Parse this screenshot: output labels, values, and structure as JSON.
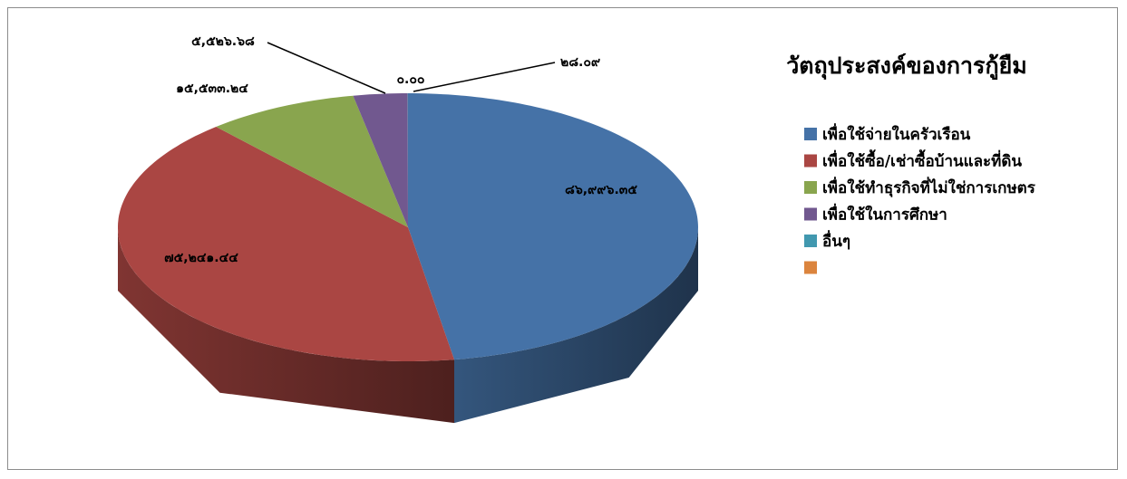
{
  "chart_data": {
    "type": "pie",
    "title": "วัตถุประสงค์ของการกู้ยืม",
    "categories": [
      "เพื่อใช้จ่ายในครัวเรือน",
      "เพื่อใช้ซื้อ/เช่าซื้อบ้านและที่ดิน",
      "เพื่อใช้ทำธุรกิจที่ไม่ใช่การเกษตร",
      "เพื่อใช้ในการศึกษา",
      "อื่นๆ",
      null
    ],
    "values": [
      86996.35,
      75241.44,
      15533.24,
      5526.68,
      28.09,
      0.0
    ],
    "value_labels": [
      "๘๖,๙๙๖.๓๕",
      "๗๕,๒๔๑.๔๔",
      "๑๕,๕๓๓.๒๔",
      "๕,๕๒๖.๖๘",
      "๒๘.๐๙",
      "๐.๐๐"
    ],
    "colors": [
      "#4572a7",
      "#aa4643",
      "#89a54e",
      "#71588f",
      "#4198af",
      "#db843d"
    ],
    "legend": "right"
  }
}
